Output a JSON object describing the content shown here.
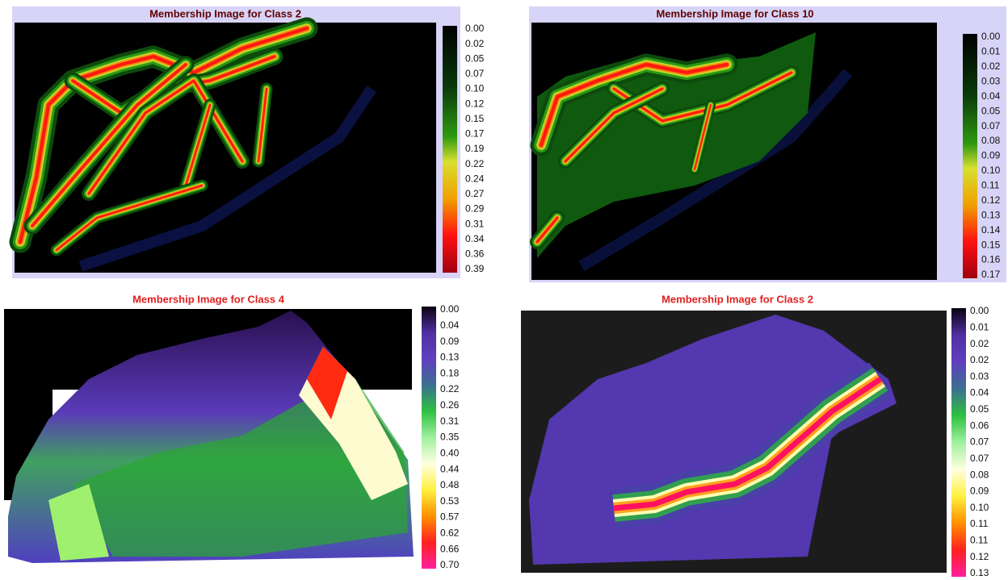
{
  "panels": [
    {
      "title": "Membership Image for Class 2",
      "legend_labels": [
        "0.00",
        "0.02",
        "0.05",
        "0.07",
        "0.10",
        "0.12",
        "0.15",
        "0.17",
        "0.19",
        "0.22",
        "0.24",
        "0.27",
        "0.29",
        "0.31",
        "0.34",
        "0.36",
        "0.39"
      ]
    },
    {
      "title": "Membership Image for Class 10",
      "legend_labels": [
        "0.00",
        "0.01",
        "0.02",
        "0.03",
        "0.04",
        "0.05",
        "0.07",
        "0.08",
        "0.09",
        "0.10",
        "0.11",
        "0.12",
        "0.13",
        "0.14",
        "0.15",
        "0.16",
        "0.17"
      ]
    },
    {
      "title": "Membership Image for Class 4",
      "legend_labels": [
        "0.00",
        "0.04",
        "0.09",
        "0.13",
        "0.18",
        "0.22",
        "0.26",
        "0.31",
        "0.35",
        "0.40",
        "0.44",
        "0.48",
        "0.53",
        "0.57",
        "0.62",
        "0.66",
        "0.70"
      ]
    },
    {
      "title": "Membership Image for Class 2",
      "legend_labels": [
        "0.00",
        "0.01",
        "0.02",
        "0.02",
        "0.03",
        "0.04",
        "0.05",
        "0.06",
        "0.07",
        "0.07",
        "0.08",
        "0.09",
        "0.10",
        "0.11",
        "0.11",
        "0.12",
        "0.13"
      ]
    }
  ]
}
